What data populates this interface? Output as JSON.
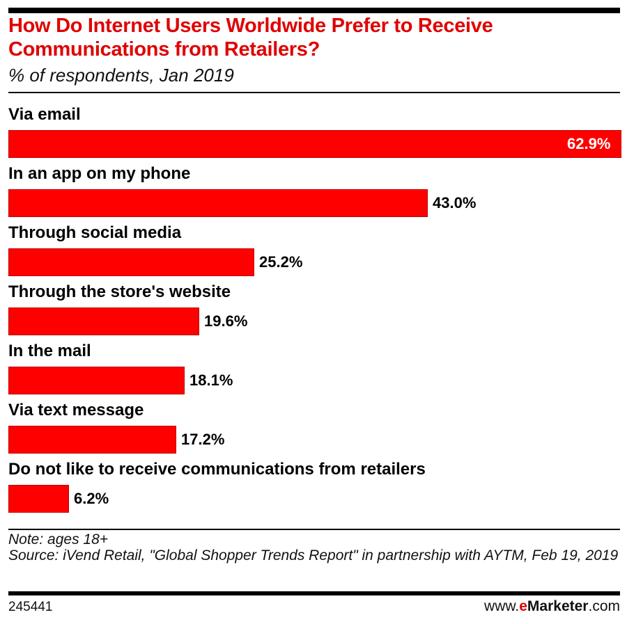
{
  "header": {
    "title": "How Do Internet Users Worldwide Prefer to Receive Communications from Retailers?",
    "subtitle": "% of respondents, Jan 2019"
  },
  "footer": {
    "note": "Note: ages 18+",
    "source": "Source: iVend Retail, \"Global Shopper Trends Report\" in partnership with AYTM, Feb 19, 2019",
    "chart_id": "245441",
    "brand": {
      "prefix": "www.",
      "e": "e",
      "name": "Marketer",
      "suffix": ".com"
    }
  },
  "colors": {
    "bar": "#ff0000",
    "title": "#e00000",
    "text": "#000000",
    "rule": "#000000"
  },
  "bars": [
    {
      "label": "Via email",
      "value": 62.9,
      "display": "62.9%"
    },
    {
      "label": "In an app on my phone",
      "value": 43.0,
      "display": "43.0%"
    },
    {
      "label": "Through social media",
      "value": 25.2,
      "display": "25.2%"
    },
    {
      "label": "Through the store's website",
      "value": 19.6,
      "display": "19.6%"
    },
    {
      "label": "In the mail",
      "value": 18.1,
      "display": "18.1%"
    },
    {
      "label": "Via text message",
      "value": 17.2,
      "display": "17.2%"
    },
    {
      "label": "Do not like to receive communications from retailers",
      "value": 6.2,
      "display": "6.2%"
    }
  ],
  "chart_data": {
    "type": "bar",
    "orientation": "horizontal",
    "title": "How Do Internet Users Worldwide Prefer to Receive Communications from Retailers?",
    "subtitle": "% of respondents, Jan 2019",
    "categories": [
      "Via email",
      "In an app on my phone",
      "Through social media",
      "Through the store's website",
      "In the mail",
      "Via text message",
      "Do not like to receive communications from retailers"
    ],
    "values": [
      62.9,
      43.0,
      25.2,
      19.6,
      18.1,
      17.2,
      6.2
    ],
    "unit": "%",
    "xlabel": "",
    "ylabel": "",
    "xlim": [
      0,
      62.9
    ],
    "grid": false,
    "legend": null,
    "data_labels": true,
    "note": "Note: ages 18+",
    "source": "Source: iVend Retail, \"Global Shopper Trends Report\" in partnership with AYTM, Feb 19, 2019"
  }
}
